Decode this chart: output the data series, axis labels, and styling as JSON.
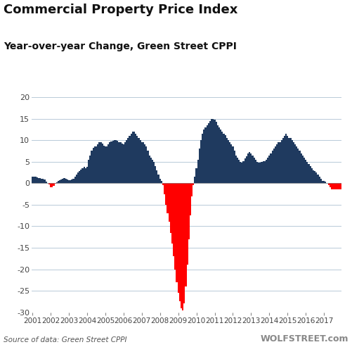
{
  "title1": "Commercial Property Price Index",
  "title2": "Year-over-year Change, Green Street CPPI",
  "ylabel": "%",
  "source_text": "Source of data: Green Street CPPI",
  "watermark": "WOLFSTREET.com",
  "ylim": [
    -30,
    20
  ],
  "yticks": [
    -30,
    -25,
    -20,
    -15,
    -10,
    -5,
    0,
    5,
    10,
    15,
    20
  ],
  "color_positive": "#1f3a5f",
  "color_negative": "#ff0000",
  "background_color": "#ffffff",
  "grid_color": "#b8cad8",
  "values": [
    1.5,
    1.5,
    1.5,
    1.3,
    1.2,
    1.2,
    1.1,
    1.0,
    0.8,
    0.4,
    0.0,
    -0.3,
    -0.9,
    -1.0,
    -0.6,
    -0.1,
    0.2,
    0.5,
    0.7,
    0.8,
    1.0,
    1.2,
    1.1,
    0.9,
    0.7,
    0.7,
    0.9,
    1.1,
    1.5,
    2.0,
    2.5,
    2.8,
    3.2,
    3.5,
    3.8,
    3.5,
    3.8,
    5.5,
    6.5,
    7.5,
    8.3,
    8.5,
    8.5,
    9.0,
    9.5,
    9.5,
    9.2,
    8.8,
    8.5,
    8.5,
    9.0,
    9.5,
    9.7,
    9.9,
    10.0,
    10.0,
    9.8,
    9.5,
    9.5,
    9.2,
    9.0,
    9.5,
    10.0,
    10.5,
    11.0,
    11.5,
    12.0,
    12.0,
    11.5,
    11.0,
    10.5,
    10.0,
    9.5,
    9.5,
    9.0,
    8.5,
    7.5,
    6.5,
    6.0,
    5.5,
    5.0,
    4.0,
    3.0,
    2.0,
    1.0,
    0.5,
    -0.5,
    -2.5,
    -5.0,
    -7.0,
    -9.0,
    -11.5,
    -14.0,
    -17.0,
    -20.0,
    -23.0,
    -25.5,
    -27.5,
    -29.0,
    -29.5,
    -28.0,
    -24.0,
    -19.0,
    -13.0,
    -7.5,
    -3.0,
    -0.5,
    1.5,
    3.5,
    5.5,
    8.0,
    10.0,
    11.5,
    12.5,
    13.0,
    13.5,
    14.0,
    14.5,
    15.0,
    15.0,
    14.8,
    14.2,
    13.5,
    13.0,
    12.5,
    12.0,
    11.5,
    11.2,
    10.5,
    10.0,
    9.5,
    9.0,
    8.5,
    7.5,
    6.5,
    6.0,
    5.5,
    5.0,
    4.8,
    5.2,
    5.8,
    6.3,
    7.0,
    7.2,
    7.0,
    6.5,
    6.0,
    5.5,
    5.0,
    4.8,
    4.8,
    5.0,
    5.2,
    5.2,
    5.5,
    6.0,
    6.5,
    7.0,
    7.5,
    8.0,
    8.5,
    9.0,
    9.5,
    9.5,
    10.0,
    10.5,
    11.0,
    11.5,
    11.0,
    10.5,
    10.5,
    10.0,
    9.5,
    9.0,
    8.5,
    8.0,
    7.5,
    7.0,
    6.5,
    6.0,
    5.5,
    5.0,
    4.5,
    4.0,
    3.5,
    3.0,
    2.8,
    2.5,
    2.0,
    1.5,
    1.0,
    0.5,
    0.5,
    0.3,
    0.0,
    -0.5,
    -1.0,
    -1.5,
    -1.5,
    -1.5,
    -1.5,
    -1.5,
    -1.5,
    -1.5
  ],
  "xtick_years": [
    2001,
    2002,
    2003,
    2004,
    2005,
    2006,
    2007,
    2008,
    2009,
    2010,
    2011,
    2012,
    2013,
    2014,
    2015,
    2016,
    2017
  ],
  "title1_fontsize": 13,
  "title2_fontsize": 10,
  "source_fontsize": 7.5,
  "watermark_fontsize": 9
}
